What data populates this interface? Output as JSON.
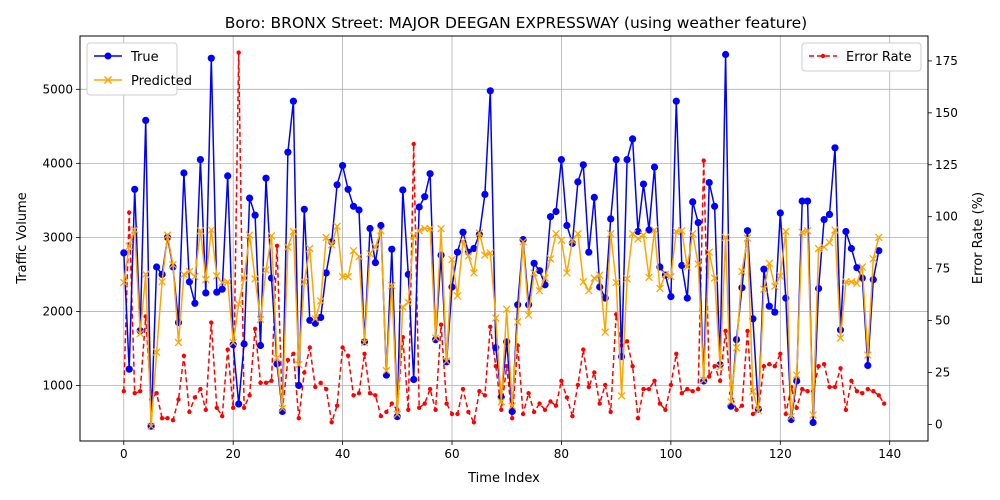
{
  "chart_data": {
    "type": "line",
    "title": "Boro: BRONX Street: MAJOR DEEGAN EXPRESSWAY (using weather feature)",
    "xlabel": "Time Index",
    "ylabel_left": "Traffic Volume",
    "ylabel_right": "Error Rate (%)",
    "xlim": [
      -8,
      147
    ],
    "ylim_left": [
      250,
      5720
    ],
    "ylim_right": [
      -8,
      187
    ],
    "xticks": [
      0,
      20,
      40,
      60,
      80,
      100,
      120,
      140
    ],
    "yticks_left": [
      1000,
      2000,
      3000,
      4000,
      5000
    ],
    "yticks_right": [
      0,
      25,
      50,
      75,
      100,
      125,
      150,
      175
    ],
    "grid": true,
    "legend_left": "upper-left",
    "legend_right": "upper-right",
    "series": [
      {
        "name": "True",
        "axis": "left",
        "color": "#0000ff",
        "marker": "circle",
        "linestyle": "solid",
        "values": [
          2790,
          1220,
          3650,
          1740,
          4580,
          450,
          2600,
          2500,
          3000,
          2600,
          1850,
          3870,
          2400,
          2110,
          4050,
          2250,
          5420,
          2260,
          2300,
          3830,
          1550,
          750,
          1560,
          3530,
          3300,
          1540,
          3800,
          2450,
          1290,
          650,
          4150,
          4840,
          1000,
          3380,
          1880,
          1840,
          1920,
          2520,
          2940,
          3710,
          3970,
          3650,
          3420,
          3370,
          1590,
          3120,
          2660,
          3160,
          1140,
          2840,
          580,
          3640,
          2500,
          1080,
          3410,
          3550,
          3860,
          1620,
          2760,
          1320,
          2330,
          2800,
          3070,
          2800,
          2850,
          3040,
          3580,
          4980,
          1510,
          840,
          1590,
          650,
          2090,
          2970,
          2090,
          2650,
          2550,
          2360,
          3280,
          3350,
          4050,
          3160,
          2920,
          3750,
          3980,
          2800,
          3540,
          2330,
          2180,
          3250,
          4050,
          1390,
          4050,
          4330,
          3080,
          3720,
          3100,
          3950,
          2600,
          2490,
          2200,
          4840,
          2620,
          2180,
          3480,
          3200,
          1060,
          3740,
          3420,
          1280,
          5470,
          720,
          1620,
          2320,
          3090,
          1900,
          680,
          2570,
          2070,
          1990,
          3330,
          2180,
          540,
          1060,
          3490,
          3490,
          500,
          2310,
          3240,
          3310,
          4210,
          1750,
          3080,
          2850,
          2590,
          2450,
          1270,
          2430,
          2820
        ]
      },
      {
        "name": "Predicted",
        "axis": "left",
        "color": "#ffa500",
        "marker": "x",
        "linestyle": "solid",
        "values": [
          2390,
          2880,
          3100,
          1700,
          2500,
          450,
          1450,
          2400,
          3030,
          2630,
          1580,
          2500,
          2540,
          2470,
          3090,
          2430,
          3100,
          2480,
          2390,
          2400,
          1580,
          2100,
          2450,
          3030,
          2440,
          1890,
          2560,
          3020,
          1370,
          690,
          2870,
          3080,
          1280,
          2400,
          2850,
          1900,
          2140,
          3000,
          2900,
          3150,
          2470,
          2470,
          2820,
          2740,
          1580,
          2780,
          2870,
          3090,
          1200,
          2350,
          610,
          2060,
          2120,
          3020,
          3090,
          3120,
          3120,
          1640,
          3120,
          1330,
          2700,
          2210,
          2950,
          2750,
          2520,
          3060,
          2760,
          2790,
          1910,
          780,
          2030,
          720,
          1860,
          2940,
          1950,
          2520,
          2280,
          2450,
          2710,
          3050,
          2960,
          2520,
          2960,
          3050,
          2400,
          2280,
          2450,
          2490,
          1720,
          3050,
          2390,
          860,
          2440,
          3050,
          2980,
          3030,
          2460,
          3100,
          2310,
          2500,
          2470,
          3080,
          3090,
          2600,
          3050,
          2640,
          1070,
          2800,
          2450,
          1250,
          3000,
          780,
          1510,
          2540,
          2990,
          920,
          660,
          2300,
          2650,
          2340,
          2480,
          3080,
          580,
          1140,
          3070,
          3090,
          600,
          2850,
          2870,
          2930,
          3100,
          1640,
          2400,
          2400,
          2380,
          2600,
          1410,
          2710,
          3000
        ]
      },
      {
        "name": "Error Rate",
        "axis": "right",
        "color": "#ff0000",
        "marker": "dot",
        "linestyle": "dashed",
        "values": [
          16,
          102,
          15,
          16,
          52,
          12,
          15,
          3,
          3,
          2,
          12,
          33,
          6,
          13,
          17,
          7,
          49,
          8,
          4,
          36,
          8,
          179,
          8,
          14,
          46,
          20,
          20,
          21,
          86,
          7,
          31,
          34,
          3,
          25,
          37,
          18,
          20,
          17,
          1,
          9,
          37,
          33,
          14,
          15,
          34,
          15,
          14,
          4,
          6,
          10,
          7,
          42,
          7,
          135,
          8,
          10,
          17,
          7,
          48,
          10,
          5,
          5,
          17,
          6,
          1,
          16,
          14,
          47,
          28,
          7,
          28,
          3,
          38,
          5,
          15,
          6,
          10,
          7,
          11,
          9,
          21,
          13,
          4,
          19,
          36,
          18,
          25,
          10,
          19,
          6,
          53,
          38,
          40,
          28,
          3,
          17,
          17,
          21,
          10,
          7,
          19,
          34,
          15,
          17,
          16,
          17,
          127,
          23,
          28,
          21,
          45,
          15,
          7,
          9,
          45,
          5,
          7,
          28,
          29,
          28,
          34,
          5,
          18,
          8,
          17,
          16,
          16,
          28,
          29,
          18,
          18,
          27,
          7,
          21,
          16,
          15,
          17,
          16,
          14,
          10
        ]
      }
    ]
  }
}
